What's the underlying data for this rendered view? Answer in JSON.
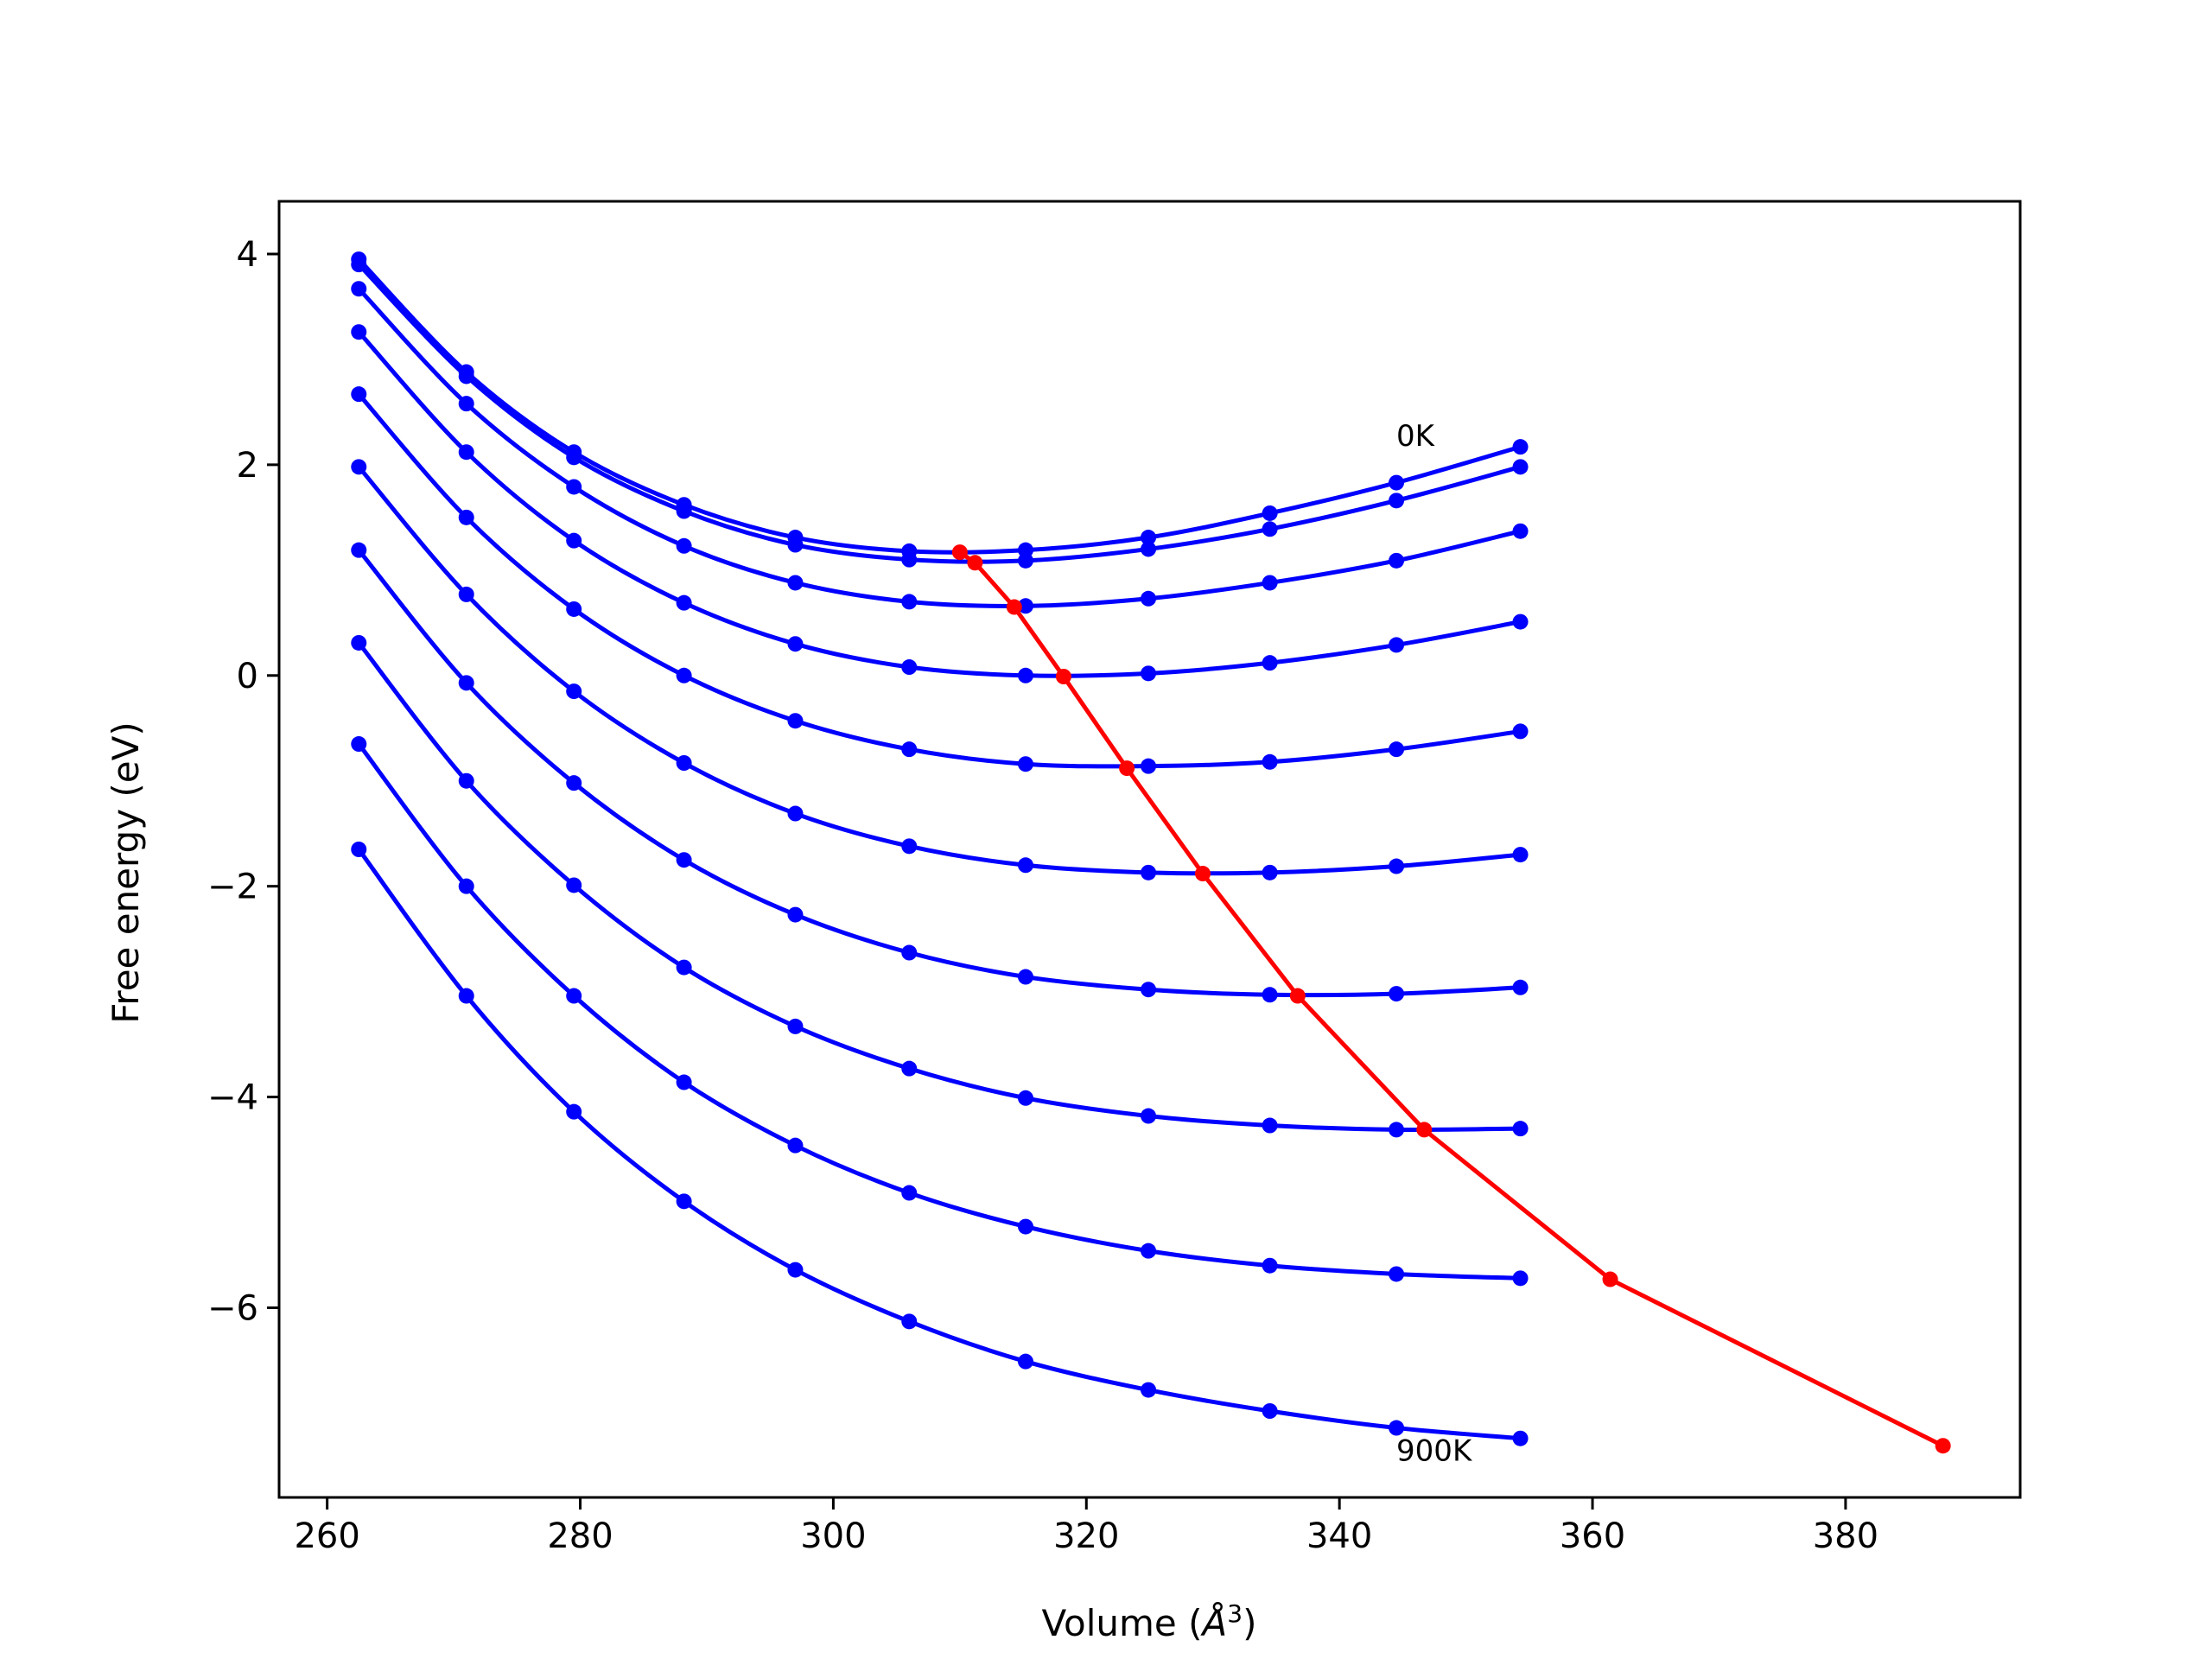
{
  "chart_data": {
    "type": "line",
    "title": "",
    "xlabel": "Volume (",
    "xlabel_unit": "Å",
    "xlabel_exp": "3",
    "xlabel_close": ")",
    "ylabel": "Free energy (eV)",
    "xlim": [
      256.2,
      393.8
    ],
    "ylim": [
      -7.8,
      4.5
    ],
    "xticks": [
      260,
      280,
      300,
      320,
      340,
      360,
      380
    ],
    "yticks": [
      4,
      2,
      0,
      -2,
      -4,
      -6
    ],
    "xtick_labels": [
      "260",
      "280",
      "300",
      "320",
      "340",
      "360",
      "380"
    ],
    "ytick_labels": [
      "4",
      "2",
      "0",
      "−2",
      "−4",
      "−6"
    ],
    "grid": false,
    "legend": "none",
    "colors": {
      "curves": "#0000ff",
      "minima": "#ff0000"
    },
    "x": [
      262.5,
      271.0,
      279.5,
      288.2,
      297.0,
      306.0,
      315.2,
      324.9,
      334.5,
      344.5,
      354.3
    ],
    "series": [
      {
        "values": [
          3.95,
          2.88,
          2.12,
          1.62,
          1.31,
          1.18,
          1.19,
          1.31,
          1.54,
          1.83,
          2.17
        ]
      },
      {
        "values": [
          3.9,
          2.84,
          2.07,
          1.56,
          1.24,
          1.1,
          1.09,
          1.2,
          1.39,
          1.66,
          1.98
        ]
      },
      {
        "values": [
          3.67,
          2.58,
          1.79,
          1.23,
          0.88,
          0.7,
          0.66,
          0.73,
          0.88,
          1.09,
          1.37
        ]
      },
      {
        "values": [
          3.26,
          2.12,
          1.28,
          0.69,
          0.3,
          0.08,
          0.0,
          0.02,
          0.12,
          0.29,
          0.51
        ]
      },
      {
        "values": [
          2.67,
          1.5,
          0.63,
          0.0,
          -0.43,
          -0.7,
          -0.84,
          -0.86,
          -0.82,
          -0.7,
          -0.53
        ]
      },
      {
        "values": [
          1.98,
          0.77,
          -0.15,
          -0.83,
          -1.31,
          -1.62,
          -1.8,
          -1.87,
          -1.87,
          -1.81,
          -1.7
        ]
      },
      {
        "values": [
          1.19,
          -0.07,
          -1.02,
          -1.75,
          -2.27,
          -2.63,
          -2.86,
          -2.98,
          -3.03,
          -3.02,
          -2.96
        ]
      },
      {
        "values": [
          0.31,
          -1.0,
          -1.99,
          -2.77,
          -3.33,
          -3.73,
          -4.01,
          -4.18,
          -4.27,
          -4.31,
          -4.3
        ]
      },
      {
        "values": [
          -0.65,
          -2.0,
          -3.04,
          -3.86,
          -4.46,
          -4.91,
          -5.23,
          -5.46,
          -5.6,
          -5.68,
          -5.72
        ]
      },
      {
        "values": [
          -1.65,
          -3.04,
          -4.14,
          -4.99,
          -5.64,
          -6.13,
          -6.51,
          -6.78,
          -6.98,
          -7.14,
          -7.24
        ]
      }
    ],
    "minima": {
      "x": [
        310.0,
        311.2,
        314.3,
        318.2,
        323.2,
        329.2,
        336.7,
        346.7,
        361.4,
        387.7
      ],
      "y": [
        1.17,
        1.07,
        0.65,
        -0.01,
        -0.88,
        -1.88,
        -3.04,
        -4.31,
        -5.73,
        -7.31
      ]
    },
    "annotations": [
      {
        "text": "0K",
        "x": 344.5,
        "y": 2.18
      },
      {
        "text": "900K",
        "x": 344.5,
        "y": -7.45
      }
    ]
  }
}
